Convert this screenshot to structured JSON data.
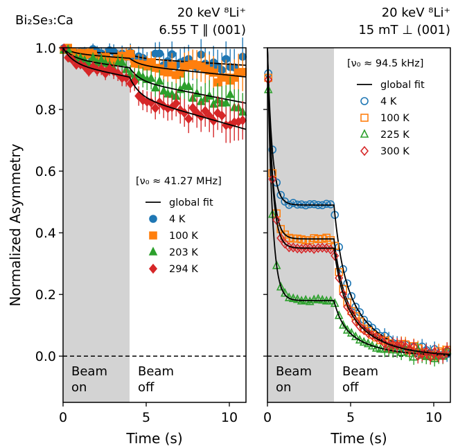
{
  "chart_data": {
    "type": "scatter",
    "sample_label": "Bi₂Se₃:Ca",
    "ylabel": "Normalized Asymmetry",
    "xlabel": "Time (s)",
    "ylim": [
      -0.15,
      1.0
    ],
    "xlim": [
      0,
      11
    ],
    "yticks": [
      "0.0",
      "0.2",
      "0.4",
      "0.6",
      "0.8",
      "1.0"
    ],
    "xticks": [
      "0",
      "5",
      "10"
    ],
    "beam_on_end": 4,
    "panels": [
      {
        "header_line1": "20 keV ⁸Li⁺",
        "header_line2": "6.55 T ∥ (001)",
        "frequency": "[ν₀ ≈ 41.27 MHz]",
        "fit_label": "global fit",
        "beam_on_label": "Beam\non",
        "beam_off_label": "Beam\noff",
        "marker_fill": "filled",
        "series": [
          {
            "name": "4 K",
            "color": "#1f77b4",
            "marker": "circle",
            "sat": 0.02,
            "A": 0.06
          },
          {
            "name": "100 K",
            "color": "#ff7f0e",
            "marker": "square",
            "sat": 0.025,
            "A": 0.1
          },
          {
            "name": "203 K",
            "color": "#2ca02c",
            "marker": "triangle",
            "sat": 0.055,
            "A": 0.19
          },
          {
            "name": "294 K",
            "color": "#d62728",
            "marker": "diamond",
            "sat": 0.085,
            "A": 0.28
          }
        ]
      },
      {
        "header_line1": "20 keV ⁸Li⁺",
        "header_line2": "15 mT ⊥ (001)",
        "frequency": "[ν₀ ≈ 94.5 kHz]",
        "fit_label": "global fit",
        "beam_on_label": "Beam\non",
        "beam_off_label": "Beam\noff",
        "marker_fill": "open",
        "series": [
          {
            "name": "4 K",
            "color": "#1f77b4",
            "marker": "circle",
            "sat": 0.49,
            "A": 0.45
          },
          {
            "name": "100 K",
            "color": "#ff7f0e",
            "marker": "square",
            "sat": 0.38,
            "A": 0.47
          },
          {
            "name": "225 K",
            "color": "#2ca02c",
            "marker": "triangle",
            "sat": 0.18,
            "A": 0.19
          },
          {
            "name": "300 K",
            "color": "#d62728",
            "marker": "diamond",
            "sat": 0.35,
            "A": 0.43
          }
        ]
      }
    ]
  }
}
